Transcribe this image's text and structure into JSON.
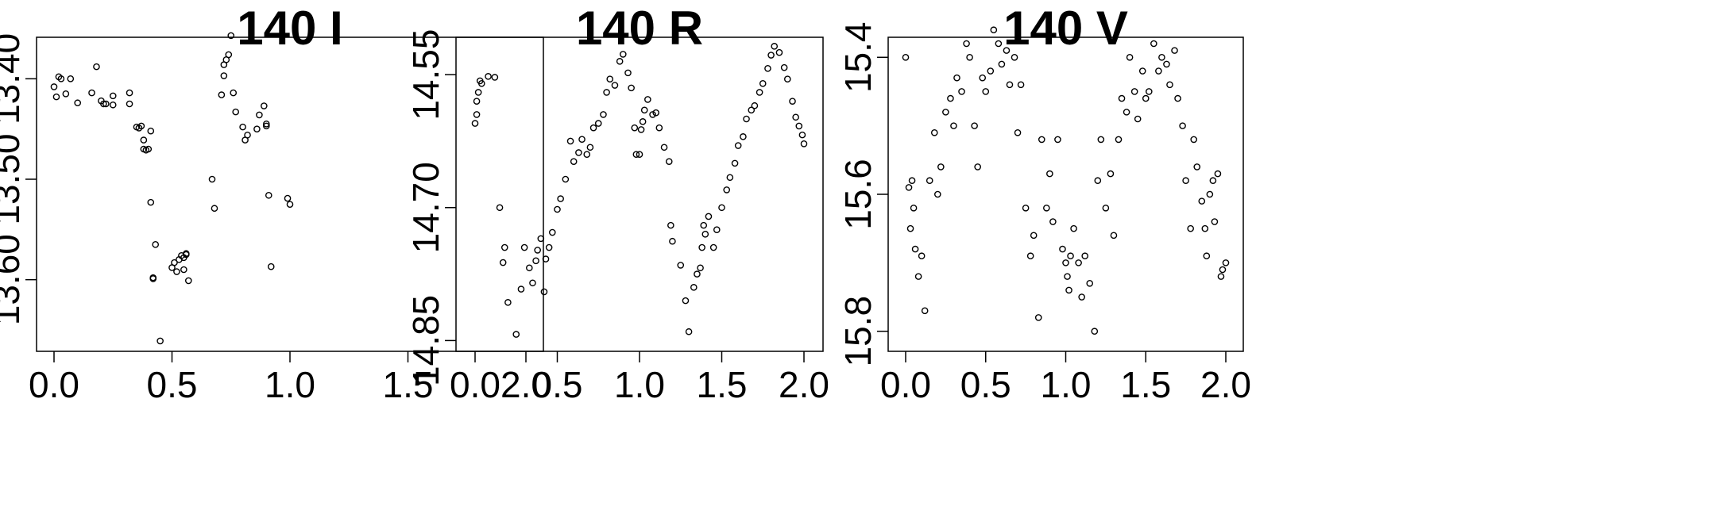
{
  "chart_data": [
    {
      "type": "scatter",
      "title": "140 I",
      "xlim": [
        0,
        2
      ],
      "ylim": [
        13.365,
        13.665
      ],
      "y_reversed": true,
      "x_ticks": [
        "0.0",
        "0.5",
        "1.0",
        "1.5",
        "2.0"
      ],
      "y_ticks": [
        "13.40",
        "13.50",
        "13.60"
      ],
      "x": [
        0.0,
        0.01,
        0.02,
        0.03,
        0.05,
        0.07,
        0.1,
        0.16,
        0.18,
        0.2,
        0.21,
        0.22,
        0.25,
        0.25,
        0.32,
        0.32,
        0.35,
        0.36,
        0.37,
        0.38,
        0.38,
        0.39,
        0.4,
        0.41,
        0.41,
        0.42,
        0.42,
        0.43,
        0.45,
        0.5,
        0.51,
        0.52,
        0.53,
        0.54,
        0.55,
        0.55,
        0.56,
        0.56,
        0.57,
        0.67,
        0.68,
        0.71,
        0.72,
        0.72,
        0.73,
        0.74,
        0.75,
        0.76,
        0.77,
        0.8,
        0.81,
        0.82,
        0.86,
        0.87,
        0.89,
        0.9,
        0.9,
        0.91,
        0.92,
        0.99,
        1.0
      ],
      "y": [
        13.408,
        13.418,
        13.398,
        13.4,
        13.415,
        13.4,
        13.424,
        13.414,
        13.388,
        13.422,
        13.425,
        13.425,
        13.426,
        13.417,
        13.425,
        13.414,
        13.448,
        13.449,
        13.447,
        13.461,
        13.47,
        13.471,
        13.47,
        13.452,
        13.523,
        13.599,
        13.598,
        13.565,
        13.661,
        13.588,
        13.583,
        13.592,
        13.58,
        13.576,
        13.578,
        13.59,
        13.575,
        13.574,
        13.601,
        13.5,
        13.529,
        13.416,
        13.397,
        13.386,
        13.381,
        13.376,
        13.357,
        13.414,
        13.433,
        13.448,
        13.461,
        13.456,
        13.45,
        13.436,
        13.427,
        13.445,
        13.447,
        13.516,
        13.587,
        13.519,
        13.525
      ],
      "grid": false
    },
    {
      "type": "scatter",
      "title": "140 R",
      "xlim": [
        0,
        2
      ],
      "ylim": [
        14.515,
        14.855
      ],
      "y_reversed": true,
      "x_ticks": [
        "0.0",
        "0.5",
        "1.0",
        "1.5",
        "2.0"
      ],
      "y_ticks": [
        "14.55",
        "14.70",
        "14.85"
      ],
      "x": [
        0.0,
        0.01,
        0.01,
        0.02,
        0.03,
        0.04,
        0.08,
        0.12,
        0.15,
        0.17,
        0.18,
        0.2,
        0.25,
        0.28,
        0.3,
        0.33,
        0.35,
        0.37,
        0.38,
        0.4,
        0.42,
        0.43,
        0.45,
        0.47,
        0.5,
        0.52,
        0.55,
        0.58,
        0.6,
        0.63,
        0.65,
        0.68,
        0.7,
        0.72,
        0.75,
        0.78,
        0.8,
        0.82,
        0.85,
        0.88,
        0.9,
        0.93,
        0.95,
        0.97,
        0.98,
        1.0,
        1.01,
        1.02,
        1.03,
        1.05,
        1.08,
        1.1,
        1.12,
        1.15,
        1.18,
        1.19,
        1.2,
        1.25,
        1.28,
        1.3,
        1.33,
        1.35,
        1.37,
        1.38,
        1.39,
        1.4,
        1.42,
        1.45,
        1.47,
        1.5,
        1.53,
        1.55,
        1.58,
        1.6,
        1.63,
        1.65,
        1.68,
        1.7,
        1.73,
        1.75,
        1.78,
        1.8,
        1.82,
        1.85,
        1.88,
        1.9,
        1.93,
        1.95,
        1.97,
        1.99,
        2.0
      ],
      "y": [
        14.605,
        14.595,
        14.58,
        14.57,
        14.557,
        14.56,
        14.552,
        14.553,
        14.7,
        14.762,
        14.745,
        14.807,
        14.843,
        14.792,
        14.745,
        14.768,
        14.785,
        14.76,
        14.748,
        14.735,
        14.795,
        14.758,
        14.745,
        14.728,
        14.702,
        14.69,
        14.668,
        14.625,
        14.648,
        14.638,
        14.623,
        14.64,
        14.632,
        14.61,
        14.605,
        14.595,
        14.57,
        14.555,
        14.562,
        14.535,
        14.527,
        14.548,
        14.565,
        14.61,
        14.64,
        14.64,
        14.612,
        14.603,
        14.59,
        14.578,
        14.595,
        14.593,
        14.61,
        14.632,
        14.648,
        14.72,
        14.738,
        14.765,
        14.805,
        14.84,
        14.79,
        14.775,
        14.768,
        14.745,
        14.72,
        14.73,
        14.71,
        14.745,
        14.725,
        14.7,
        14.68,
        14.666,
        14.65,
        14.63,
        14.62,
        14.6,
        14.59,
        14.585,
        14.57,
        14.56,
        14.543,
        14.528,
        14.518,
        14.525,
        14.542,
        14.555,
        14.58,
        14.598,
        14.608,
        14.618,
        14.628
      ],
      "grid": false
    },
    {
      "type": "scatter",
      "title": "140 V",
      "xlim": [
        0,
        2
      ],
      "ylim": [
        15.38,
        15.82
      ],
      "y_reversed": true,
      "x_ticks": [
        "0.0",
        "0.5",
        "1.0",
        "1.5",
        "2.0"
      ],
      "y_ticks": [
        "15.4",
        "15.6",
        "15.8"
      ],
      "x": [
        0.0,
        0.02,
        0.03,
        0.04,
        0.05,
        0.06,
        0.08,
        0.1,
        0.12,
        0.15,
        0.18,
        0.2,
        0.22,
        0.25,
        0.28,
        0.3,
        0.32,
        0.35,
        0.38,
        0.4,
        0.43,
        0.45,
        0.48,
        0.5,
        0.53,
        0.55,
        0.58,
        0.6,
        0.63,
        0.65,
        0.68,
        0.7,
        0.72,
        0.75,
        0.78,
        0.8,
        0.83,
        0.85,
        0.88,
        0.9,
        0.92,
        0.95,
        0.98,
        1.0,
        1.01,
        1.02,
        1.03,
        1.05,
        1.08,
        1.1,
        1.12,
        1.15,
        1.18,
        1.2,
        1.22,
        1.25,
        1.28,
        1.3,
        1.33,
        1.35,
        1.38,
        1.4,
        1.43,
        1.45,
        1.48,
        1.5,
        1.52,
        1.55,
        1.58,
        1.6,
        1.63,
        1.65,
        1.68,
        1.7,
        1.73,
        1.75,
        1.78,
        1.8,
        1.82,
        1.85,
        1.87,
        1.88,
        1.9,
        1.92,
        1.93,
        1.95,
        1.97,
        1.98,
        2.0
      ],
      "y": [
        15.4,
        15.59,
        15.65,
        15.58,
        15.62,
        15.68,
        15.72,
        15.69,
        15.77,
        15.58,
        15.51,
        15.6,
        15.56,
        15.48,
        15.46,
        15.5,
        15.43,
        15.45,
        15.38,
        15.4,
        15.5,
        15.56,
        15.43,
        15.45,
        15.42,
        15.36,
        15.38,
        15.41,
        15.39,
        15.44,
        15.4,
        15.51,
        15.44,
        15.62,
        15.69,
        15.66,
        15.78,
        15.52,
        15.62,
        15.57,
        15.64,
        15.52,
        15.68,
        15.7,
        15.72,
        15.74,
        15.69,
        15.65,
        15.7,
        15.75,
        15.69,
        15.73,
        15.8,
        15.58,
        15.52,
        15.62,
        15.57,
        15.66,
        15.52,
        15.46,
        15.48,
        15.4,
        15.45,
        15.49,
        15.42,
        15.46,
        15.45,
        15.38,
        15.42,
        15.4,
        15.41,
        15.44,
        15.39,
        15.46,
        15.5,
        15.58,
        15.65,
        15.52,
        15.56,
        15.61,
        15.65,
        15.69,
        15.6,
        15.58,
        15.64,
        15.57,
        15.72,
        15.71,
        15.7
      ],
      "grid": false
    }
  ]
}
